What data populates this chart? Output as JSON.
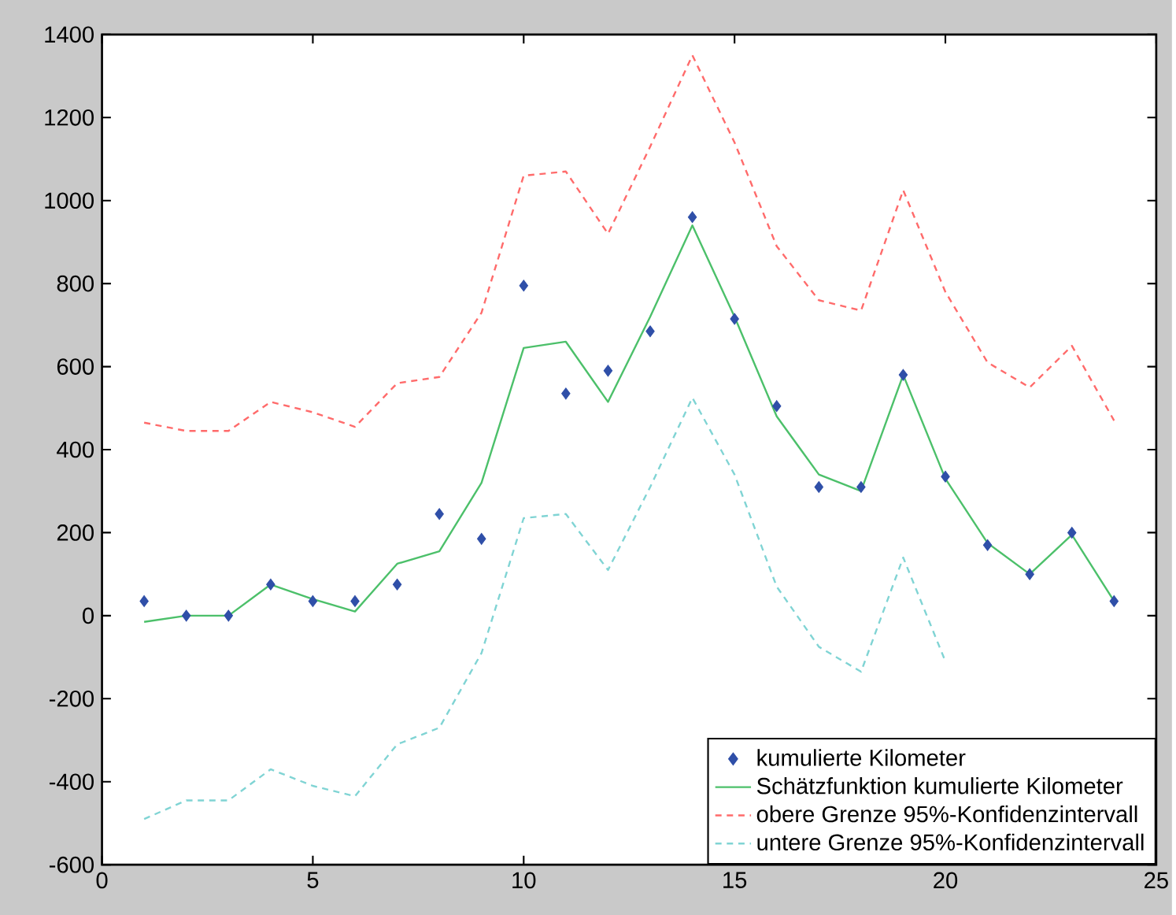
{
  "chart_data": {
    "type": "line",
    "x": [
      1,
      2,
      3,
      4,
      5,
      6,
      7,
      8,
      9,
      10,
      11,
      12,
      13,
      14,
      15,
      16,
      17,
      18,
      19,
      20,
      21,
      22,
      23,
      24
    ],
    "xlim": [
      0,
      25
    ],
    "xticks": [
      0,
      5,
      10,
      15,
      20,
      25
    ],
    "ylim": [
      -600,
      1400
    ],
    "yticks": [
      -600,
      -400,
      -200,
      0,
      200,
      400,
      600,
      800,
      1000,
      1200,
      1400
    ],
    "grid": false,
    "legend": "bottom right",
    "series": [
      {
        "name": "kumulierte Kilometer",
        "type": "scatter",
        "marker": "diamond",
        "color": "#2f4fa8",
        "values": [
          35,
          0,
          0,
          75,
          35,
          35,
          75,
          245,
          185,
          795,
          535,
          590,
          685,
          960,
          715,
          505,
          310,
          310,
          580,
          335,
          170,
          100,
          200,
          35
        ]
      },
      {
        "name": "Schätzfunktion kumulierte Kilometer",
        "line_style": "solid",
        "color": "#4cc06a",
        "values": [
          -15,
          0,
          0,
          75,
          40,
          10,
          125,
          155,
          320,
          645,
          660,
          515,
          720,
          940,
          720,
          480,
          340,
          300,
          580,
          330,
          175,
          100,
          195,
          35
        ]
      },
      {
        "name": "obere Grenze 95%-Konfidenzintervall",
        "line_style": "dashed",
        "color": "#ff6b6b",
        "values": [
          465,
          445,
          445,
          515,
          490,
          455,
          560,
          575,
          730,
          1060,
          1070,
          920,
          1130,
          1350,
          1140,
          890,
          760,
          735,
          1025,
          780,
          610,
          550,
          650,
          470
        ]
      },
      {
        "name": "untere Grenze 95%-Konfidenzintervall",
        "line_style": "dashed",
        "color": "#80d4d4",
        "values": [
          -490,
          -445,
          -445,
          -370,
          -410,
          -435,
          -310,
          -270,
          -90,
          235,
          245,
          110,
          310,
          525,
          340,
          70,
          -75,
          -135,
          140,
          -110,
          null,
          null,
          null,
          null
        ]
      }
    ]
  }
}
